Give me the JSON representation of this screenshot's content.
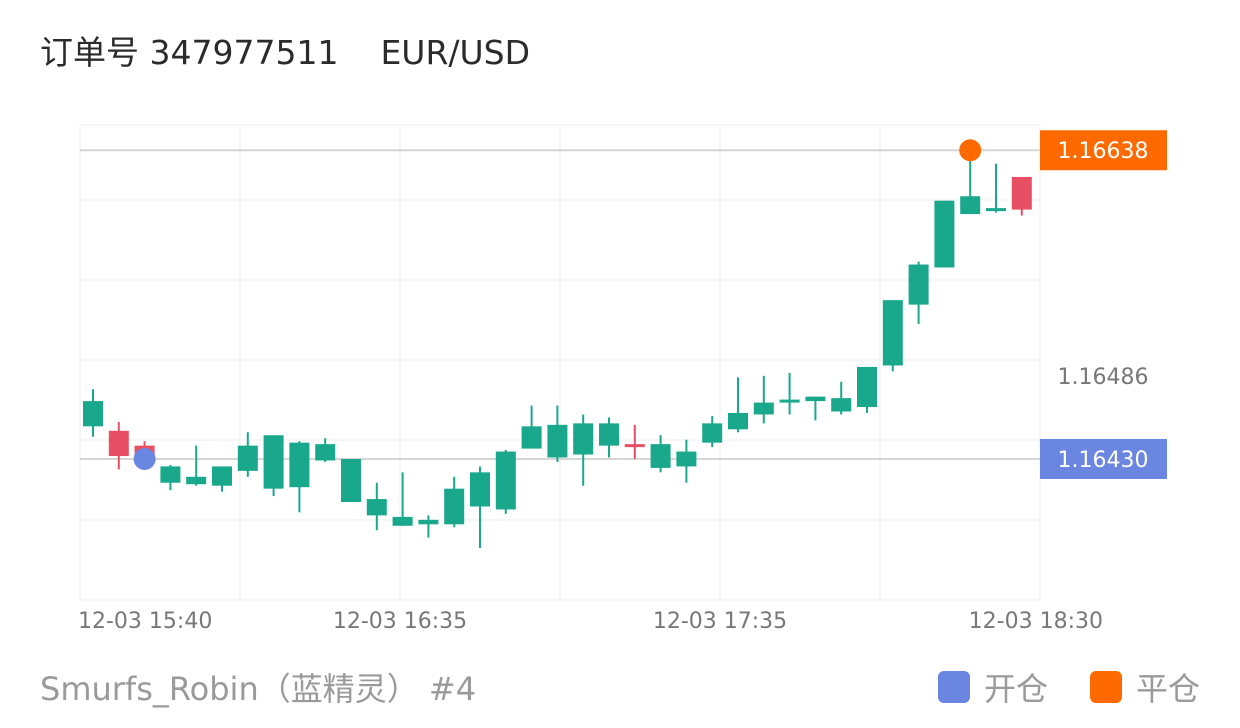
{
  "header": {
    "order_text": "订单号 347977511",
    "pair": "EUR/USD"
  },
  "footer": {
    "strategy": "Smurfs_Robin（蓝精灵） #4"
  },
  "legend": [
    {
      "label": "开仓",
      "color": "#6b86e0"
    },
    {
      "label": "平仓",
      "color": "#ff6a00"
    }
  ],
  "colors": {
    "up": "#1aa88c",
    "down": "#e94f64",
    "open_marker": "#6b86e0",
    "close_marker": "#ff6a00",
    "grid": "#ececec"
  },
  "chart_data": {
    "type": "candlestick",
    "x_tick_labels": [
      "12-03 15:40",
      "12-03 16:35",
      "12-03 17:35",
      "12-03 18:30"
    ],
    "y_axis_labels": [
      "1.16486"
    ],
    "ylim": [
      1.16335,
      1.16655
    ],
    "grid": true,
    "price_tags": [
      {
        "label": "1.16638",
        "value": 1.16638,
        "color": "#ff6a00"
      },
      {
        "label": "1.16430",
        "value": 1.1643,
        "color": "#6b86e0"
      }
    ],
    "markers": [
      {
        "type": "open",
        "index": 2,
        "value": 1.1643
      },
      {
        "type": "close",
        "index": 34,
        "value": 1.16638
      }
    ],
    "candles": [
      {
        "o": 1.16452,
        "h": 1.16477,
        "l": 1.16445,
        "c": 1.16469
      },
      {
        "o": 1.16449,
        "h": 1.16455,
        "l": 1.16423,
        "c": 1.16432
      },
      {
        "o": 1.16439,
        "h": 1.16442,
        "l": 1.16428,
        "c": 1.16433
      },
      {
        "o": 1.16414,
        "h": 1.16426,
        "l": 1.16409,
        "c": 1.16425
      },
      {
        "o": 1.16413,
        "h": 1.16439,
        "l": 1.16412,
        "c": 1.16418
      },
      {
        "o": 1.16412,
        "h": 1.16424,
        "l": 1.16408,
        "c": 1.16425
      },
      {
        "o": 1.16422,
        "h": 1.16448,
        "l": 1.16418,
        "c": 1.16439
      },
      {
        "o": 1.1641,
        "h": 1.16443,
        "l": 1.16405,
        "c": 1.16446
      },
      {
        "o": 1.16411,
        "h": 1.16442,
        "l": 1.16394,
        "c": 1.16441
      },
      {
        "o": 1.16429,
        "h": 1.16444,
        "l": 1.16428,
        "c": 1.1644
      },
      {
        "o": 1.16401,
        "h": 1.1643,
        "l": 1.16401,
        "c": 1.1643
      },
      {
        "o": 1.16392,
        "h": 1.16414,
        "l": 1.16382,
        "c": 1.16403
      },
      {
        "o": 1.16385,
        "h": 1.16421,
        "l": 1.16385,
        "c": 1.16391
      },
      {
        "o": 1.16386,
        "h": 1.16392,
        "l": 1.16377,
        "c": 1.16389
      },
      {
        "o": 1.16386,
        "h": 1.16418,
        "l": 1.16384,
        "c": 1.1641
      },
      {
        "o": 1.16398,
        "h": 1.16425,
        "l": 1.1637,
        "c": 1.16421
      },
      {
        "o": 1.16396,
        "h": 1.16436,
        "l": 1.16393,
        "c": 1.16435
      },
      {
        "o": 1.16437,
        "h": 1.16466,
        "l": 1.16437,
        "c": 1.16452
      },
      {
        "o": 1.16431,
        "h": 1.16466,
        "l": 1.16428,
        "c": 1.16453
      },
      {
        "o": 1.16433,
        "h": 1.1646,
        "l": 1.16412,
        "c": 1.16454
      },
      {
        "o": 1.16439,
        "h": 1.16458,
        "l": 1.16431,
        "c": 1.16454
      },
      {
        "o": 1.1644,
        "h": 1.16453,
        "l": 1.1643,
        "c": 1.16439
      },
      {
        "o": 1.16424,
        "h": 1.16446,
        "l": 1.16421,
        "c": 1.1644
      },
      {
        "o": 1.16425,
        "h": 1.16443,
        "l": 1.16414,
        "c": 1.16435
      },
      {
        "o": 1.16441,
        "h": 1.16459,
        "l": 1.16438,
        "c": 1.16454
      },
      {
        "o": 1.1645,
        "h": 1.16485,
        "l": 1.16448,
        "c": 1.16461
      },
      {
        "o": 1.1646,
        "h": 1.16486,
        "l": 1.16454,
        "c": 1.16468
      },
      {
        "o": 1.16469,
        "h": 1.16488,
        "l": 1.1646,
        "c": 1.1647
      },
      {
        "o": 1.16469,
        "h": 1.16472,
        "l": 1.16456,
        "c": 1.16472
      },
      {
        "o": 1.16462,
        "h": 1.16482,
        "l": 1.1646,
        "c": 1.16471
      },
      {
        "o": 1.16465,
        "h": 1.16492,
        "l": 1.16461,
        "c": 1.16492
      },
      {
        "o": 1.16493,
        "h": 1.16537,
        "l": 1.16489,
        "c": 1.16537
      },
      {
        "o": 1.16534,
        "h": 1.16563,
        "l": 1.16521,
        "c": 1.16561
      },
      {
        "o": 1.16559,
        "h": 1.16604,
        "l": 1.16559,
        "c": 1.16604
      },
      {
        "o": 1.16595,
        "h": 1.16638,
        "l": 1.16595,
        "c": 1.16607
      },
      {
        "o": 1.16597,
        "h": 1.16629,
        "l": 1.16596,
        "c": 1.16599
      },
      {
        "o": 1.1662,
        "h": 1.1662,
        "l": 1.16594,
        "c": 1.16598
      }
    ]
  }
}
